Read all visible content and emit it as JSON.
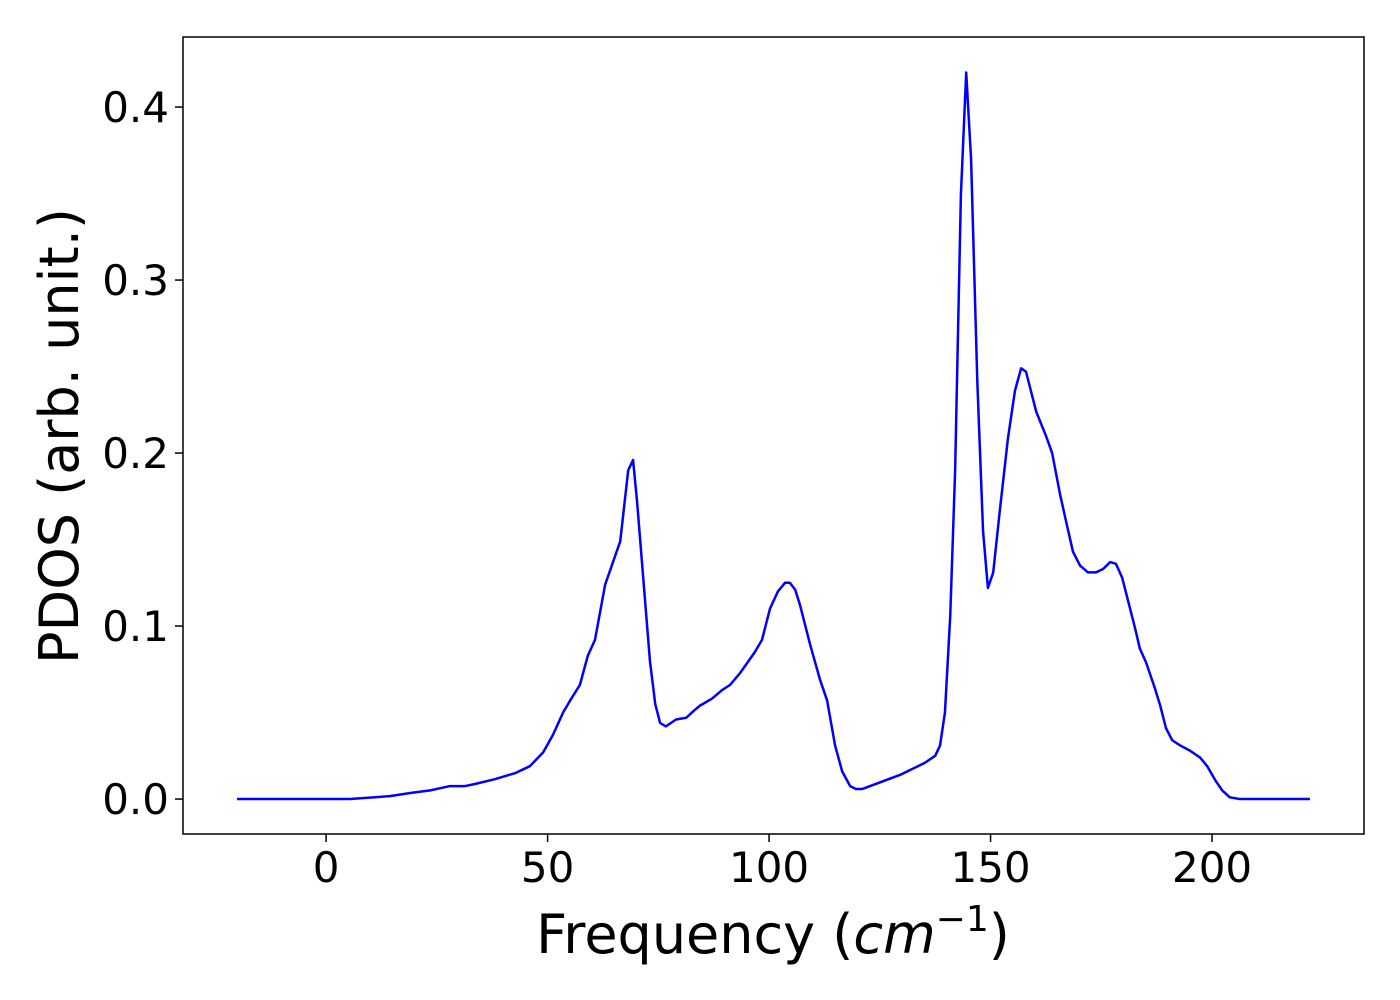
{
  "chart_data": {
    "type": "line",
    "xlabel": {
      "text": "Frequency (",
      "math": "cm",
      "sup": "−1",
      "end": ")"
    },
    "ylabel": "PDOS (arb. unit.)",
    "xlim": [
      -32.3,
      234.3
    ],
    "ylim": [
      -0.0202,
      0.4405
    ],
    "xticks": [
      0,
      50,
      100,
      150,
      200
    ],
    "yticks": [
      {
        "value": 0,
        "label": "0.0"
      },
      0.1,
      0.2,
      0.3,
      0.4
    ],
    "grid": false,
    "series": [
      {
        "color": "#0000ff",
        "x": [
          -20.1,
          5.4,
          14.4,
          19,
          23.5,
          28,
          31.4,
          33.6,
          38.1,
          42.7,
          46,
          49,
          51.2,
          53.5,
          55.1,
          57.3,
          59.1,
          60.7,
          63,
          66.4,
          68.2,
          69.3,
          70.2,
          73.1,
          74.3,
          75.4,
          76.7,
          79,
          81.3,
          83,
          84.4,
          87.1,
          89.4,
          91.2,
          93.5,
          96.8,
          98.4,
          100.2,
          102,
          103.6,
          104.7,
          105.9,
          107,
          109.3,
          111.5,
          113.1,
          114.9,
          116.5,
          118.3,
          119.6,
          121,
          129.6,
          135.2,
          137.5,
          138.6,
          139.7,
          140.9,
          142,
          143.3,
          144.5,
          145.6,
          147,
          148.3,
          149.4,
          150.6,
          152.1,
          153.9,
          155.5,
          156.9,
          158,
          160.3,
          162.5,
          163.9,
          165.7,
          167,
          168.6,
          170.2,
          172,
          173.8,
          175.4,
          177,
          178.3,
          179.7,
          181,
          182.6,
          183.7,
          185.1,
          187.1,
          188.3,
          189.6,
          191,
          192.8,
          195,
          197.3,
          198.9,
          200.7,
          202.3,
          204,
          206.3,
          222.1
        ],
        "values": [
          0,
          0,
          0.0017,
          0.0035,
          0.005,
          0.0075,
          0.0075,
          0.0087,
          0.0115,
          0.015,
          0.019,
          0.027,
          0.037,
          0.05,
          0.057,
          0.066,
          0.083,
          0.092,
          0.124,
          0.149,
          0.19,
          0.196,
          0.172,
          0.08,
          0.055,
          0.044,
          0.042,
          0.046,
          0.047,
          0.051,
          0.054,
          0.058,
          0.063,
          0.066,
          0.073,
          0.085,
          0.092,
          0.11,
          0.12,
          0.125,
          0.125,
          0.121,
          0.112,
          0.089,
          0.069,
          0.057,
          0.031,
          0.016,
          0.0075,
          0.0058,
          0.0058,
          0.014,
          0.021,
          0.025,
          0.031,
          0.05,
          0.106,
          0.19,
          0.349,
          0.42,
          0.37,
          0.242,
          0.155,
          0.122,
          0.131,
          0.167,
          0.208,
          0.236,
          0.249,
          0.247,
          0.224,
          0.21,
          0.2,
          0.176,
          0.161,
          0.143,
          0.135,
          0.131,
          0.131,
          0.133,
          0.137,
          0.136,
          0.128,
          0.115,
          0.099,
          0.087,
          0.079,
          0.064,
          0.054,
          0.041,
          0.034,
          0.031,
          0.028,
          0.024,
          0.019,
          0.011,
          0.005,
          0.001,
          0,
          0
        ]
      }
    ]
  }
}
